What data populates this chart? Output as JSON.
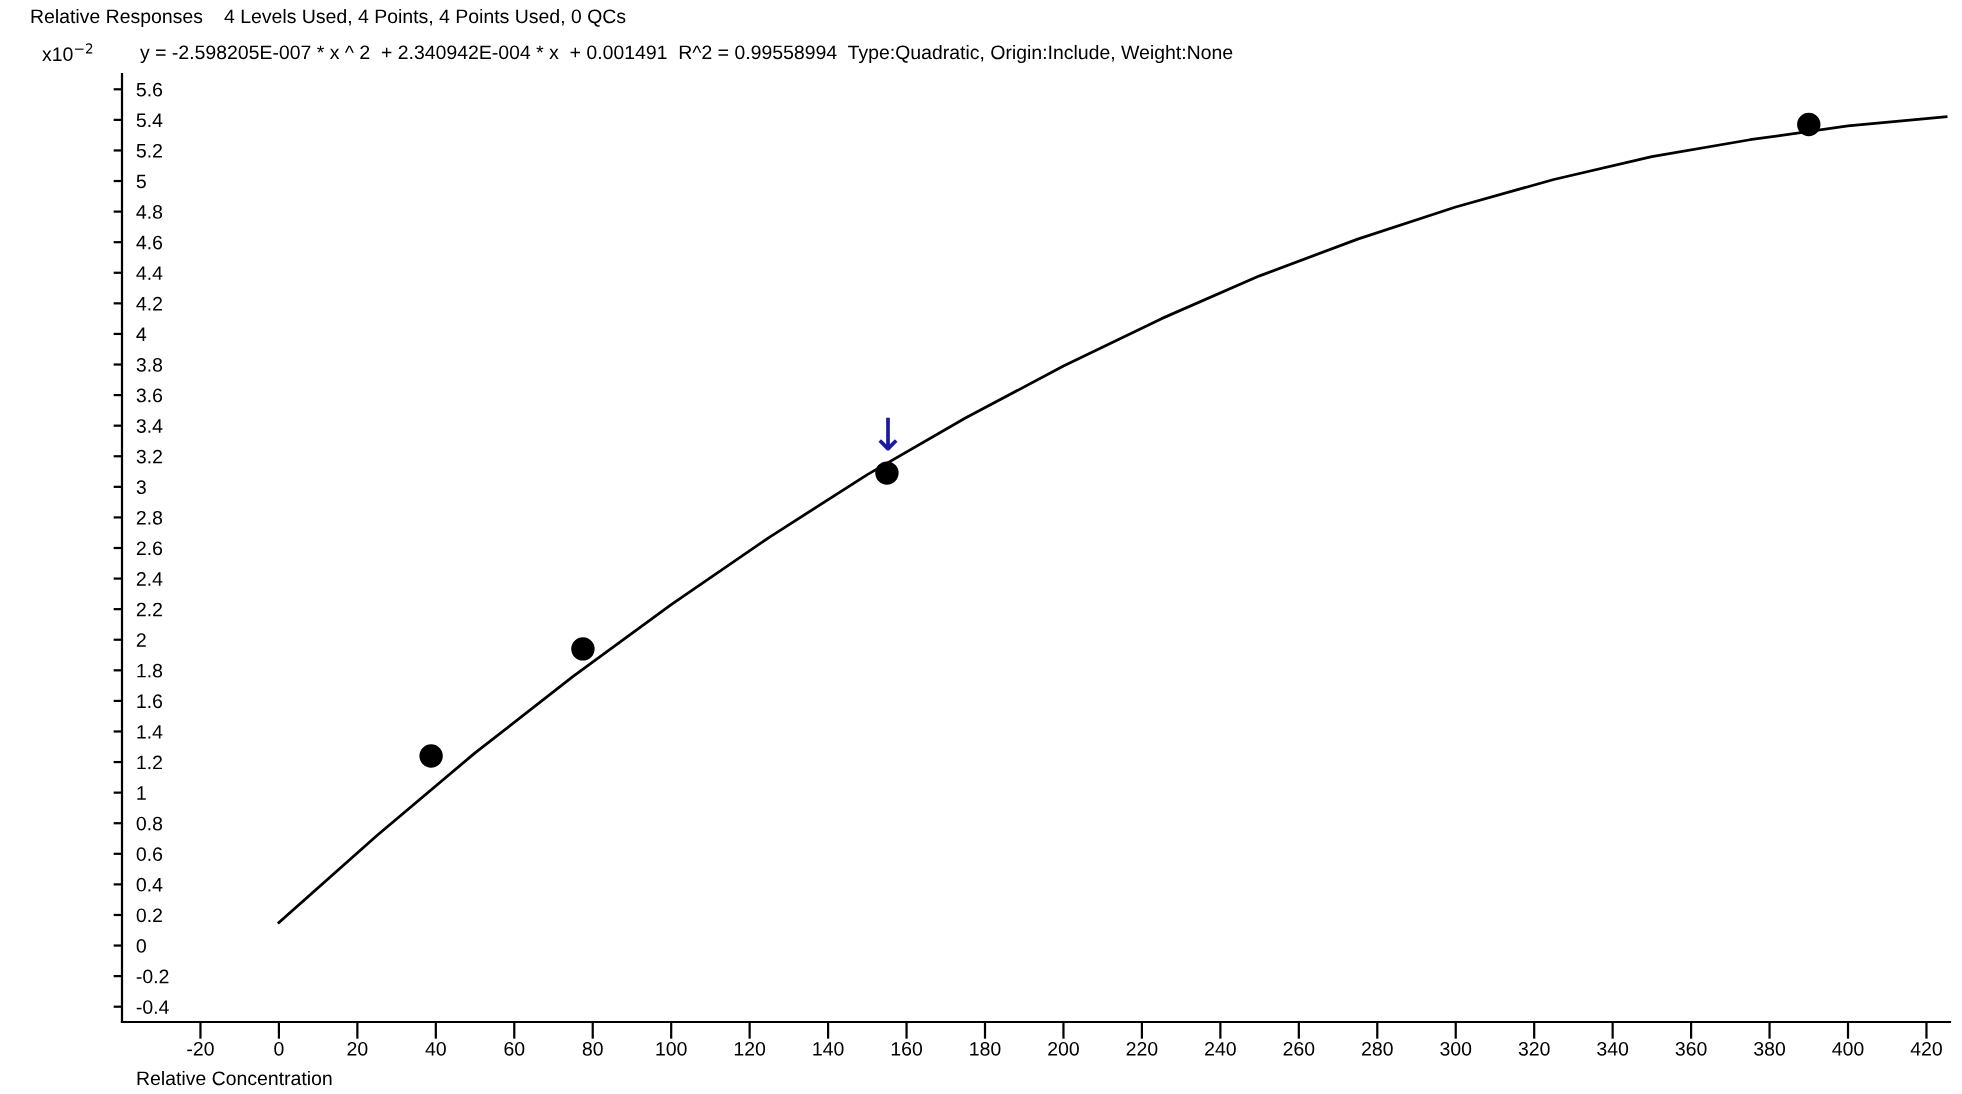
{
  "chart_data": {
    "type": "scatter",
    "title": "4 Levels Used, 4 Points, 4 Points Used, 0 QCs",
    "subtitle": "y = -2.598205E-007 * x ^ 2  + 2.340942E-004 * x  + 0.001491  R^2 = 0.99558994  Type:Quadratic, Origin:Include, Weight:None",
    "xlabel": "Relative Concentration",
    "ylabel": "Relative Responses",
    "annotations": [
      "x10$^{−2}$",
      "↓"
    ],
    "series": [
      {
        "color": "#000000",
        "marker": "circle",
        "x": [
          38.8,
          77.5,
          155,
          390
        ],
        "values": [
          1.24,
          1.94,
          3.09,
          5.37
        ]
      },
      {
        "type": "line",
        "color": "#000000",
        "marker": "none",
        "x": [
          0,
          25,
          50,
          75,
          100,
          125,
          150,
          175,
          200,
          225,
          250,
          275,
          300,
          325,
          350,
          375,
          400,
          425
        ],
        "values": [
          0.15,
          0.72,
          1.26,
          1.76,
          2.23,
          2.67,
          3.08,
          3.45,
          3.79,
          4.1,
          4.38,
          4.62,
          4.83,
          5.01,
          5.16,
          5.27,
          5.36,
          5.42
        ]
      }
    ],
    "xlim": [
      -40,
      426
    ],
    "ylim": [
      -0.5,
      5.7
    ],
    "xticks": [
      -20,
      0,
      20,
      40,
      60,
      80,
      100,
      120,
      140,
      160,
      180,
      200,
      220,
      240,
      260,
      280,
      300,
      320,
      340,
      360,
      380,
      400,
      420
    ],
    "yticks": [
      -0.4,
      -0.2,
      0,
      0.2,
      0.4,
      0.6,
      0.8,
      1,
      1.2,
      1.4,
      1.6,
      1.8,
      2,
      2.2,
      2.4,
      2.6,
      2.8,
      3,
      3.2,
      3.4,
      3.6,
      3.8,
      4,
      4.2,
      4.4,
      4.6,
      4.8,
      5,
      5.2,
      5.4,
      5.6
    ],
    "grid": false,
    "legend": false
  }
}
